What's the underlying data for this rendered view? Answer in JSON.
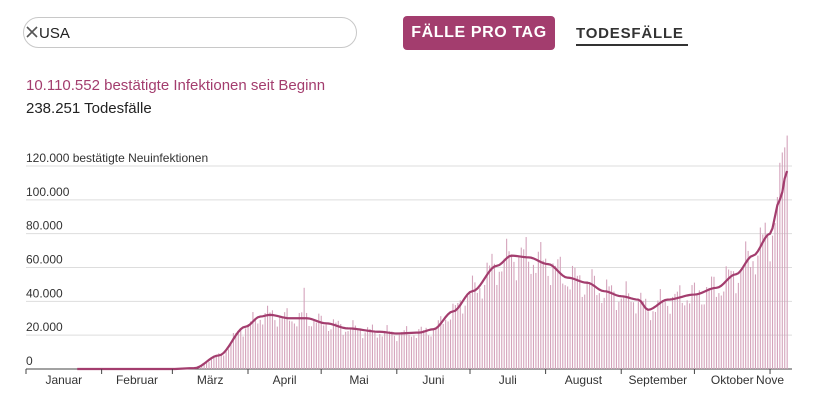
{
  "search": {
    "value": "USA",
    "placeholder": "",
    "clear_icon": "close-icon"
  },
  "tabs": [
    {
      "label": "FÄLLE PRO TAG",
      "active": true
    },
    {
      "label": "TODESFÄLLE",
      "active": false
    }
  ],
  "summary": {
    "infections": "10.110.552 bestätigte Infektionen seit Beginn",
    "deaths": "238.251 Todesfälle"
  },
  "colors": {
    "accent": "#a33d6e",
    "bars": "#d4a3bb",
    "grid": "#dddddd"
  },
  "chart_data": {
    "type": "bar",
    "title": "",
    "ylabel": "bestätigte Neuinfektionen",
    "ylim": [
      0,
      140000
    ],
    "yticks": [
      {
        "value": 0,
        "label": "0"
      },
      {
        "value": 20000,
        "label": "20.000"
      },
      {
        "value": 40000,
        "label": "40.000"
      },
      {
        "value": 60000,
        "label": "60.000"
      },
      {
        "value": 80000,
        "label": "80.000"
      },
      {
        "value": 100000,
        "label": "100.000"
      },
      {
        "value": 120000,
        "label": "120.000 bestätigte Neuinfektionen"
      }
    ],
    "month_labels": [
      "Januar",
      "Februar",
      "März",
      "April",
      "Mai",
      "Juni",
      "Juli",
      "August",
      "September",
      "Oktober",
      "Nove"
    ],
    "series": [
      {
        "kind": "bars",
        "description": "daily cases"
      },
      {
        "kind": "line",
        "description": "7-day average"
      }
    ],
    "average_keypoints": [
      [
        "2020-01-22",
        0
      ],
      [
        "2020-03-01",
        0
      ],
      [
        "2020-03-10",
        500
      ],
      [
        "2020-03-20",
        8000
      ],
      [
        "2020-03-31",
        25000
      ],
      [
        "2020-04-06",
        31000
      ],
      [
        "2020-04-10",
        32000
      ],
      [
        "2020-04-18",
        30000
      ],
      [
        "2020-04-25",
        30000
      ],
      [
        "2020-05-03",
        27000
      ],
      [
        "2020-05-12",
        24000
      ],
      [
        "2020-05-25",
        22000
      ],
      [
        "2020-06-01",
        21000
      ],
      [
        "2020-06-10",
        21500
      ],
      [
        "2020-06-16",
        23500
      ],
      [
        "2020-06-24",
        34000
      ],
      [
        "2020-07-02",
        46000
      ],
      [
        "2020-07-12",
        61000
      ],
      [
        "2020-07-18",
        67000
      ],
      [
        "2020-07-25",
        66000
      ],
      [
        "2020-08-02",
        62000
      ],
      [
        "2020-08-10",
        54000
      ],
      [
        "2020-08-18",
        51000
      ],
      [
        "2020-08-25",
        46000
      ],
      [
        "2020-09-01",
        43000
      ],
      [
        "2020-09-08",
        41000
      ],
      [
        "2020-09-12",
        35000
      ],
      [
        "2020-09-20",
        41000
      ],
      [
        "2020-10-01",
        44000
      ],
      [
        "2020-10-10",
        48000
      ],
      [
        "2020-10-18",
        56000
      ],
      [
        "2020-10-25",
        67000
      ],
      [
        "2020-11-01",
        80000
      ],
      [
        "2020-11-05",
        100000
      ],
      [
        "2020-11-08",
        117000
      ]
    ],
    "peak_bars": [
      [
        "2020-04-24",
        48000
      ],
      [
        "2020-07-16",
        77000
      ],
      [
        "2020-07-24",
        78000
      ],
      [
        "2020-11-06",
        128000
      ],
      [
        "2020-11-07",
        131000
      ],
      [
        "2020-11-08",
        138000
      ]
    ]
  }
}
